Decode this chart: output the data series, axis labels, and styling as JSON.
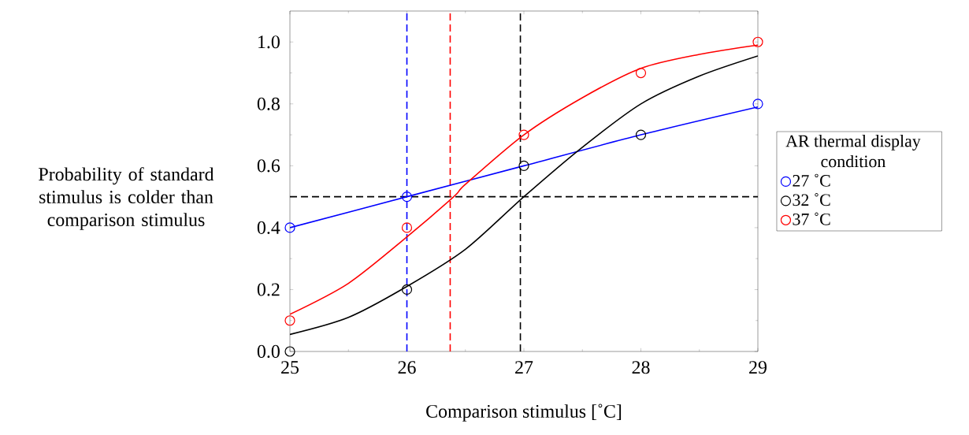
{
  "chart_data": {
    "type": "scatter",
    "xlabel": "Comparison stimulus [˚C]",
    "ylabel": "Probability of standard stimulus is colder than comparison stimulus",
    "legend_title": "AR thermal display condition",
    "x": [
      25,
      26,
      27,
      28,
      29
    ],
    "series": [
      {
        "name": "27 ˚C",
        "color": "#0000ff",
        "values": [
          0.4,
          0.5,
          null,
          null,
          0.8
        ]
      },
      {
        "name": "32 ˚C",
        "color": "#000000",
        "values": [
          0.0,
          0.2,
          0.6,
          0.7,
          null
        ]
      },
      {
        "name": "37 ˚C",
        "color": "#ff0000",
        "values": [
          0.1,
          0.4,
          0.7,
          0.9,
          1.0
        ]
      },
      {
        "type": "line",
        "marker": "none",
        "color": "#0000ff",
        "x": [
          25,
          26,
          27,
          28,
          29
        ],
        "values": [
          0.4,
          0.5,
          0.6,
          0.7,
          0.79
        ]
      },
      {
        "type": "line",
        "marker": "none",
        "color": "#000000",
        "x": [
          25,
          25.5,
          26,
          26.5,
          27,
          27.5,
          28,
          28.5,
          29
        ],
        "values": [
          0.055,
          0.11,
          0.21,
          0.33,
          0.5,
          0.66,
          0.8,
          0.89,
          0.955
        ]
      },
      {
        "type": "line",
        "marker": "none",
        "color": "#ff0000",
        "x": [
          25,
          25.5,
          26,
          26.4,
          26.5,
          27,
          27.5,
          28,
          28.5,
          29
        ],
        "values": [
          0.12,
          0.22,
          0.37,
          0.5,
          0.54,
          0.7,
          0.82,
          0.915,
          0.96,
          0.99
        ]
      }
    ],
    "ref_lines": [
      {
        "axis": "y",
        "value": 0.5,
        "color": "#000000",
        "line_style": "dashed"
      },
      {
        "axis": "x",
        "value": 26,
        "color": "#0000ff",
        "line_style": "dashed"
      },
      {
        "axis": "x",
        "value": 26.37,
        "color": "#ff0000",
        "line_style": "dashed"
      },
      {
        "axis": "x",
        "value": 26.97,
        "color": "#000000",
        "line_style": "dashed"
      }
    ],
    "xlim": [
      25,
      29
    ],
    "ylim": [
      0,
      1.1
    ],
    "xticks": [
      25,
      26,
      27,
      28,
      29
    ],
    "yticks": [
      {
        "value": 0,
        "label": "0.0"
      },
      {
        "value": 0.2,
        "label": "0.2"
      },
      {
        "value": 0.4,
        "label": "0.4"
      },
      {
        "value": 0.6,
        "label": "0.6"
      },
      {
        "value": 0.8,
        "label": "0.8"
      },
      {
        "value": 1.0,
        "label": "1.0"
      }
    ],
    "marker": "circle",
    "grid": false,
    "legend": "right"
  }
}
